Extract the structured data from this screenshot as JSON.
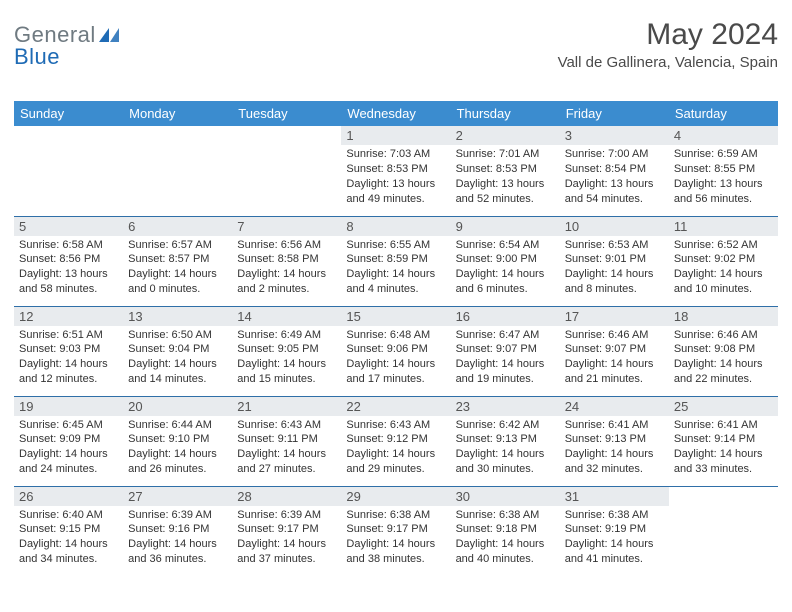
{
  "theme": {
    "header_bg": "#3b8ccf",
    "header_text": "#ffffff",
    "border_color": "#2f6fa8",
    "daynum_bg": "#e8ebee",
    "body_text": "#333333",
    "logo_gray": "#6f7a81",
    "logo_blue": "#1f6bb5",
    "background": "#ffffff",
    "title_color": "#4a4a4a",
    "font_family": "Arial, Helvetica, sans-serif",
    "weekday_fontsize": 13,
    "daynum_fontsize": 13,
    "body_fontsize": 11,
    "title_fontsize": 30,
    "location_fontsize": 15
  },
  "logo": {
    "text1": "General",
    "text2": "Blue"
  },
  "title": "May 2024",
  "location": "Vall de Gallinera, Valencia, Spain",
  "weekdays": [
    "Sunday",
    "Monday",
    "Tuesday",
    "Wednesday",
    "Thursday",
    "Friday",
    "Saturday"
  ],
  "weeks": [
    [
      {
        "day": "",
        "text": ""
      },
      {
        "day": "",
        "text": ""
      },
      {
        "day": "",
        "text": ""
      },
      {
        "day": "1",
        "text": "Sunrise: 7:03 AM\nSunset: 8:53 PM\nDaylight: 13 hours and 49 minutes."
      },
      {
        "day": "2",
        "text": "Sunrise: 7:01 AM\nSunset: 8:53 PM\nDaylight: 13 hours and 52 minutes."
      },
      {
        "day": "3",
        "text": "Sunrise: 7:00 AM\nSunset: 8:54 PM\nDaylight: 13 hours and 54 minutes."
      },
      {
        "day": "4",
        "text": "Sunrise: 6:59 AM\nSunset: 8:55 PM\nDaylight: 13 hours and 56 minutes."
      }
    ],
    [
      {
        "day": "5",
        "text": "Sunrise: 6:58 AM\nSunset: 8:56 PM\nDaylight: 13 hours and 58 minutes."
      },
      {
        "day": "6",
        "text": "Sunrise: 6:57 AM\nSunset: 8:57 PM\nDaylight: 14 hours and 0 minutes."
      },
      {
        "day": "7",
        "text": "Sunrise: 6:56 AM\nSunset: 8:58 PM\nDaylight: 14 hours and 2 minutes."
      },
      {
        "day": "8",
        "text": "Sunrise: 6:55 AM\nSunset: 8:59 PM\nDaylight: 14 hours and 4 minutes."
      },
      {
        "day": "9",
        "text": "Sunrise: 6:54 AM\nSunset: 9:00 PM\nDaylight: 14 hours and 6 minutes."
      },
      {
        "day": "10",
        "text": "Sunrise: 6:53 AM\nSunset: 9:01 PM\nDaylight: 14 hours and 8 minutes."
      },
      {
        "day": "11",
        "text": "Sunrise: 6:52 AM\nSunset: 9:02 PM\nDaylight: 14 hours and 10 minutes."
      }
    ],
    [
      {
        "day": "12",
        "text": "Sunrise: 6:51 AM\nSunset: 9:03 PM\nDaylight: 14 hours and 12 minutes."
      },
      {
        "day": "13",
        "text": "Sunrise: 6:50 AM\nSunset: 9:04 PM\nDaylight: 14 hours and 14 minutes."
      },
      {
        "day": "14",
        "text": "Sunrise: 6:49 AM\nSunset: 9:05 PM\nDaylight: 14 hours and 15 minutes."
      },
      {
        "day": "15",
        "text": "Sunrise: 6:48 AM\nSunset: 9:06 PM\nDaylight: 14 hours and 17 minutes."
      },
      {
        "day": "16",
        "text": "Sunrise: 6:47 AM\nSunset: 9:07 PM\nDaylight: 14 hours and 19 minutes."
      },
      {
        "day": "17",
        "text": "Sunrise: 6:46 AM\nSunset: 9:07 PM\nDaylight: 14 hours and 21 minutes."
      },
      {
        "day": "18",
        "text": "Sunrise: 6:46 AM\nSunset: 9:08 PM\nDaylight: 14 hours and 22 minutes."
      }
    ],
    [
      {
        "day": "19",
        "text": "Sunrise: 6:45 AM\nSunset: 9:09 PM\nDaylight: 14 hours and 24 minutes."
      },
      {
        "day": "20",
        "text": "Sunrise: 6:44 AM\nSunset: 9:10 PM\nDaylight: 14 hours and 26 minutes."
      },
      {
        "day": "21",
        "text": "Sunrise: 6:43 AM\nSunset: 9:11 PM\nDaylight: 14 hours and 27 minutes."
      },
      {
        "day": "22",
        "text": "Sunrise: 6:43 AM\nSunset: 9:12 PM\nDaylight: 14 hours and 29 minutes."
      },
      {
        "day": "23",
        "text": "Sunrise: 6:42 AM\nSunset: 9:13 PM\nDaylight: 14 hours and 30 minutes."
      },
      {
        "day": "24",
        "text": "Sunrise: 6:41 AM\nSunset: 9:13 PM\nDaylight: 14 hours and 32 minutes."
      },
      {
        "day": "25",
        "text": "Sunrise: 6:41 AM\nSunset: 9:14 PM\nDaylight: 14 hours and 33 minutes."
      }
    ],
    [
      {
        "day": "26",
        "text": "Sunrise: 6:40 AM\nSunset: 9:15 PM\nDaylight: 14 hours and 34 minutes."
      },
      {
        "day": "27",
        "text": "Sunrise: 6:39 AM\nSunset: 9:16 PM\nDaylight: 14 hours and 36 minutes."
      },
      {
        "day": "28",
        "text": "Sunrise: 6:39 AM\nSunset: 9:17 PM\nDaylight: 14 hours and 37 minutes."
      },
      {
        "day": "29",
        "text": "Sunrise: 6:38 AM\nSunset: 9:17 PM\nDaylight: 14 hours and 38 minutes."
      },
      {
        "day": "30",
        "text": "Sunrise: 6:38 AM\nSunset: 9:18 PM\nDaylight: 14 hours and 40 minutes."
      },
      {
        "day": "31",
        "text": "Sunrise: 6:38 AM\nSunset: 9:19 PM\nDaylight: 14 hours and 41 minutes."
      },
      {
        "day": "",
        "text": ""
      }
    ]
  ]
}
